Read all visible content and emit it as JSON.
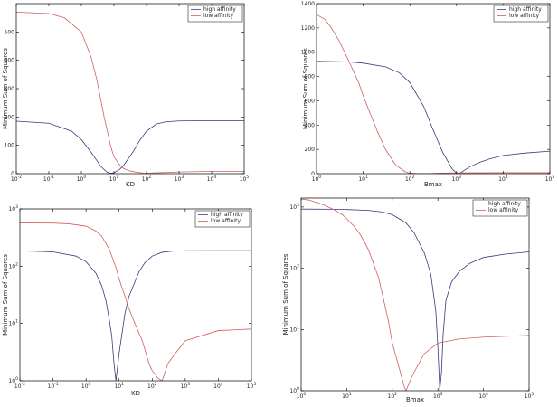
{
  "chart_data": [
    {
      "type": "line",
      "xscale": "log",
      "yscale": "linear",
      "xlabel": "KD",
      "ylabel": "Minimum Sum of Squares",
      "xlim": [
        0.01,
        100000
      ],
      "ylim": [
        0,
        600
      ],
      "grid": false,
      "legend": "top-right",
      "x_ticks": [
        "10^-2",
        "10^-1",
        "10^0",
        "10^1",
        "10^2",
        "10^3",
        "10^4",
        "10^5"
      ],
      "y_ticks": [
        "0",
        "100",
        "200",
        "300",
        "400",
        "500"
      ],
      "y_tick_values": [
        0,
        100,
        200,
        300,
        400,
        500
      ],
      "series": [
        {
          "name": "high affinity",
          "color": "#3a3a7a",
          "x": [
            0.01,
            0.1,
            0.5,
            1,
            2,
            4,
            6,
            8,
            10,
            15,
            20,
            40,
            60,
            100,
            200,
            400,
            1000,
            10000,
            100000
          ],
          "y": [
            185,
            178,
            150,
            120,
            75,
            25,
            6,
            1,
            3,
            15,
            30,
            80,
            115,
            150,
            175,
            183,
            186,
            187,
            187
          ]
        },
        {
          "name": "low affinity",
          "color": "#d06060",
          "x": [
            0.01,
            0.1,
            0.3,
            1,
            2,
            3,
            5,
            8,
            10,
            15,
            20,
            30,
            50,
            80,
            100,
            200,
            1000,
            10000,
            100000
          ],
          "y": [
            570,
            565,
            550,
            500,
            410,
            330,
            200,
            95,
            60,
            30,
            18,
            10,
            5,
            2,
            1.5,
            3,
            6,
            8,
            8
          ]
        }
      ]
    },
    {
      "type": "line",
      "xscale": "log",
      "yscale": "linear",
      "xlabel": "Bmax",
      "ylabel": "Minimum Sum of Squares",
      "xlim": [
        1,
        100000
      ],
      "ylim": [
        0,
        1400
      ],
      "grid": false,
      "legend": "top-right",
      "x_ticks": [
        "10^0",
        "10^1",
        "10^2",
        "10^3",
        "10^4",
        "10^5"
      ],
      "y_ticks": [
        "0",
        "200",
        "400",
        "600",
        "800",
        "1000",
        "1200",
        "1400"
      ],
      "y_tick_values": [
        0,
        200,
        400,
        600,
        800,
        1000,
        1200,
        1400
      ],
      "series": [
        {
          "name": "high affinity",
          "color": "#3a3a7a",
          "x": [
            1,
            5,
            10,
            30,
            60,
            100,
            200,
            300,
            500,
            800,
            1000,
            1200,
            1500,
            2000,
            3000,
            5000,
            10000,
            30000,
            100000
          ],
          "y": [
            925,
            920,
            910,
            880,
            830,
            750,
            550,
            380,
            180,
            40,
            5,
            5,
            30,
            60,
            90,
            120,
            150,
            170,
            185
          ]
        },
        {
          "name": "low affinity",
          "color": "#d06060",
          "x": [
            1,
            1.5,
            2,
            3,
            5,
            8,
            10,
            15,
            20,
            30,
            50,
            80,
            100,
            150,
            200,
            250,
            300,
            500,
            1000,
            10000,
            100000
          ],
          "y": [
            1310,
            1270,
            1210,
            1100,
            920,
            750,
            640,
            470,
            350,
            200,
            70,
            15,
            4,
            1,
            0.5,
            1,
            2,
            4,
            6,
            8,
            8
          ]
        }
      ]
    },
    {
      "type": "line",
      "xscale": "log",
      "yscale": "log",
      "xlabel": "KD",
      "ylabel": "Minimum Sum of Squares",
      "xlim": [
        0.01,
        100000
      ],
      "ylim": [
        1,
        1000
      ],
      "grid": false,
      "legend": "top-right",
      "x_ticks": [
        "10^-2",
        "10^-1",
        "10^0",
        "10^1",
        "10^2",
        "10^3",
        "10^4",
        "10^5"
      ],
      "y_ticks": [
        "10^0",
        "10^1",
        "10^2",
        "10^3"
      ],
      "y_tick_values": [
        1,
        10,
        100,
        1000
      ],
      "series": [
        {
          "name": "high affinity",
          "color": "#3a3a7a",
          "x": [
            0.01,
            0.1,
            0.5,
            1,
            2,
            3,
            4,
            5,
            6,
            7,
            8,
            10,
            15,
            20,
            40,
            60,
            100,
            200,
            400,
            1000,
            10000,
            100000
          ],
          "y": [
            185,
            178,
            150,
            120,
            75,
            45,
            25,
            12,
            6,
            2,
            1,
            3,
            15,
            30,
            80,
            115,
            150,
            175,
            183,
            186,
            187,
            187
          ]
        },
        {
          "name": "low affinity",
          "color": "#d06060",
          "x": [
            0.01,
            0.1,
            0.3,
            1,
            2,
            3,
            5,
            8,
            10,
            15,
            20,
            30,
            50,
            80,
            100,
            150,
            200,
            300,
            500,
            1000,
            10000,
            100000
          ],
          "y": [
            570,
            565,
            550,
            500,
            410,
            330,
            200,
            95,
            60,
            30,
            18,
            10,
            5,
            2,
            1.5,
            1.1,
            1,
            2,
            3,
            5,
            7.5,
            8
          ]
        }
      ]
    },
    {
      "type": "line",
      "xscale": "log",
      "yscale": "log",
      "xlabel": "Bmax",
      "ylabel": "Minimum Sum of Squares",
      "xlim": [
        1,
        100000
      ],
      "ylim": [
        1,
        1400
      ],
      "grid": false,
      "legend": "top-right",
      "x_ticks": [
        "10^0",
        "10^1",
        "10^2",
        "10^3",
        "10^4",
        "10^5"
      ],
      "y_ticks": [
        "10^0",
        "10^1",
        "10^2",
        "10^3"
      ],
      "y_tick_values": [
        1,
        10,
        100,
        1000
      ],
      "series": [
        {
          "name": "high affinity",
          "color": "#3a3a7a",
          "x": [
            1,
            5,
            10,
            30,
            60,
            100,
            200,
            300,
            500,
            700,
            900,
            1000,
            1100,
            1200,
            1300,
            1500,
            2000,
            3000,
            5000,
            10000,
            30000,
            100000
          ],
          "y": [
            925,
            920,
            910,
            880,
            830,
            750,
            550,
            380,
            180,
            80,
            20,
            5,
            1,
            2,
            8,
            30,
            60,
            90,
            120,
            150,
            170,
            185
          ]
        },
        {
          "name": "low affinity",
          "color": "#d06060",
          "x": [
            1,
            1.5,
            2,
            3,
            5,
            8,
            10,
            15,
            20,
            30,
            50,
            80,
            100,
            150,
            180,
            200,
            250,
            300,
            500,
            1000,
            3000,
            10000,
            100000
          ],
          "y": [
            1350,
            1300,
            1210,
            1100,
            920,
            750,
            640,
            470,
            350,
            200,
            70,
            15,
            6,
            2,
            1.2,
            1,
            1.5,
            2,
            4,
            6,
            7,
            7.5,
            8
          ]
        }
      ]
    }
  ]
}
